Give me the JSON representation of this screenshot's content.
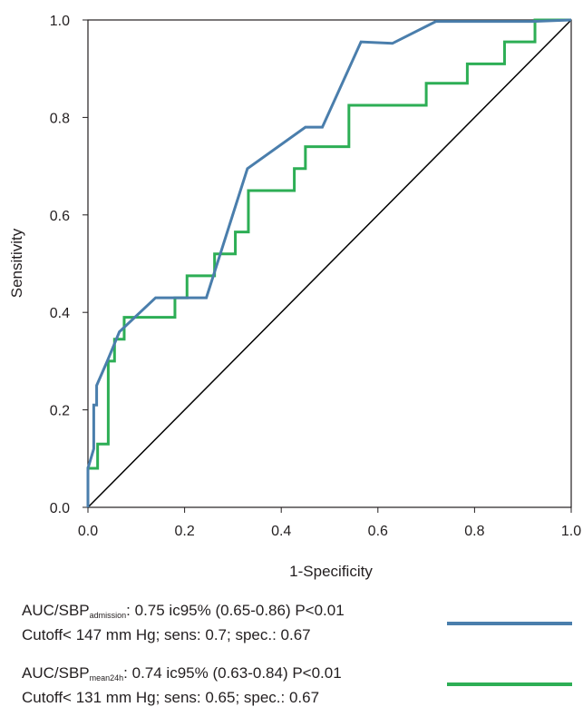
{
  "chart_data": {
    "type": "line",
    "title": "",
    "xlabel": "1-Specificity",
    "ylabel": "Sensitivity",
    "xlim": [
      0.0,
      1.0
    ],
    "ylim": [
      0.0,
      1.0
    ],
    "xticks": [
      "0.0",
      "0.2",
      "0.4",
      "0.6",
      "0.8",
      "1.0"
    ],
    "yticks": [
      "0.0",
      "0.2",
      "0.4",
      "0.6",
      "0.8",
      "1.0"
    ],
    "grid": false,
    "legend_position": "bottom",
    "series": [
      {
        "name": "AUC/SBP admission",
        "color": "#4a7eac",
        "x": [
          0.0,
          0.0,
          0.012,
          0.012,
          0.018,
          0.018,
          0.04,
          0.065,
          0.14,
          0.245,
          0.33,
          0.45,
          0.485,
          0.565,
          0.63,
          0.72,
          0.92,
          1.0
        ],
        "y": [
          0.0,
          0.08,
          0.12,
          0.21,
          0.21,
          0.25,
          0.3,
          0.36,
          0.43,
          0.43,
          0.695,
          0.78,
          0.78,
          0.955,
          0.952,
          0.997,
          0.997,
          1.0
        ]
      },
      {
        "name": "AUC/SBP mean24h",
        "color": "#2dae55",
        "x": [
          0.0,
          0.0,
          0.02,
          0.02,
          0.042,
          0.042,
          0.042,
          0.055,
          0.055,
          0.075,
          0.075,
          0.18,
          0.18,
          0.205,
          0.205,
          0.262,
          0.262,
          0.305,
          0.305,
          0.332,
          0.332,
          0.427,
          0.427,
          0.45,
          0.45,
          0.54,
          0.54,
          0.7,
          0.7,
          0.785,
          0.785,
          0.862,
          0.862,
          0.925,
          0.925,
          1.0
        ],
        "y": [
          0.0,
          0.08,
          0.08,
          0.13,
          0.13,
          0.295,
          0.3,
          0.3,
          0.345,
          0.345,
          0.39,
          0.39,
          0.43,
          0.43,
          0.475,
          0.475,
          0.52,
          0.52,
          0.565,
          0.565,
          0.65,
          0.65,
          0.695,
          0.695,
          0.74,
          0.74,
          0.825,
          0.825,
          0.87,
          0.87,
          0.91,
          0.91,
          0.955,
          0.955,
          1.0,
          1.0
        ]
      },
      {
        "name": "reference",
        "color": "#000000",
        "x": [
          0.0,
          1.0
        ],
        "y": [
          0.0,
          1.0
        ]
      }
    ]
  },
  "legend": [
    {
      "prefix": "AUC/SBP",
      "subscript": "admission",
      "suffix": ": 0.75 ic95% (0.65-0.86) P<0.01",
      "line2": "Cutoff< 147 mm Hg; sens: 0.7; spec.: 0.67",
      "color": "#4a7eac"
    },
    {
      "prefix": "AUC/SBP",
      "subscript": "mean24h",
      "suffix": ": 0.74 ic95% (0.63-0.84) P<0.01",
      "line2": "Cutoff< 131 mm Hg; sens: 0.65; spec.: 0.67",
      "color": "#2dae55"
    }
  ]
}
